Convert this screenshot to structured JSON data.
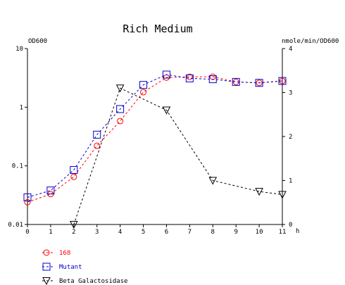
{
  "chart_data": {
    "type": "line",
    "title": "Rich Medium",
    "xlabel": "h",
    "ylabel_left": "OD600",
    "ylabel_right": "nmole/min/OD600",
    "x": [
      0,
      1,
      2,
      3,
      4,
      5,
      6,
      7,
      8,
      9,
      10,
      11
    ],
    "xlim": [
      0,
      11
    ],
    "ylim_left": [
      0.01,
      10
    ],
    "yscale_left": "log",
    "ylim_right": [
      0,
      4
    ],
    "yscale_right": "linear",
    "x_ticks": [
      "0",
      "1",
      "2",
      "3",
      "4",
      "5",
      "6",
      "7",
      "8",
      "9",
      "10",
      "11"
    ],
    "y_ticks_left": [
      "0.01",
      "0.1",
      "1",
      "10"
    ],
    "y_ticks_right": [
      "0",
      "1",
      "2",
      "3",
      "4"
    ],
    "legend_position": "bottom-left",
    "grid": false,
    "series": [
      {
        "name": "168",
        "axis": "left",
        "color": "#ff0000",
        "marker": "circle",
        "x": [
          0,
          1,
          2,
          3,
          4,
          5,
          6,
          7,
          8,
          9,
          10,
          11
        ],
        "values": [
          0.024,
          0.033,
          0.065,
          0.22,
          0.58,
          1.8,
          3.2,
          3.3,
          3.3,
          2.7,
          2.6,
          2.8
        ]
      },
      {
        "name": "Mutant",
        "axis": "left",
        "color": "#0000cc",
        "marker": "square",
        "x": [
          0,
          1,
          2,
          3,
          4,
          5,
          6,
          7,
          8,
          9,
          10,
          11
        ],
        "values": [
          0.029,
          0.038,
          0.085,
          0.34,
          0.93,
          2.4,
          3.6,
          3.1,
          3.0,
          2.7,
          2.6,
          2.8
        ]
      },
      {
        "name": "Beta Galactosidase",
        "axis": "right",
        "color": "#000000",
        "marker": "triangle-down",
        "x": [
          2,
          4,
          6,
          8,
          10,
          11
        ],
        "values": [
          0.0,
          3.1,
          2.6,
          1.0,
          0.75,
          0.68
        ]
      }
    ]
  }
}
